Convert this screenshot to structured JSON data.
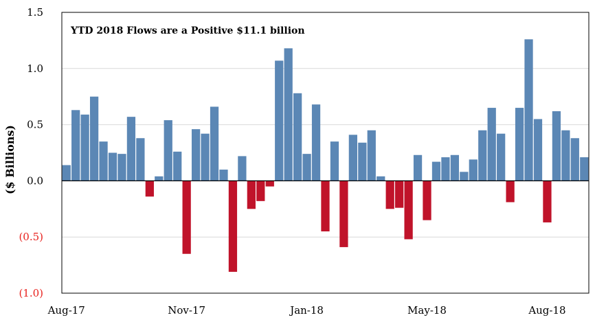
{
  "chart_data": {
    "type": "bar",
    "title": "",
    "annotation": "YTD 2018 Flows are a Positive $11.1 billion",
    "xlabel": "",
    "ylabel": "($ Billions)",
    "ylim": [
      -1.0,
      1.5
    ],
    "yticks": [
      {
        "value": 1.5,
        "label": "1.5"
      },
      {
        "value": 1.0,
        "label": "1.0"
      },
      {
        "value": 0.5,
        "label": "0.5"
      },
      {
        "value": 0.0,
        "label": "0.0"
      },
      {
        "value": -0.5,
        "label": "(0.5)"
      },
      {
        "value": -1.0,
        "label": "(1.0)"
      }
    ],
    "xticks": [
      {
        "index": 0,
        "label": "Aug-17"
      },
      {
        "index": 13,
        "label": "Nov-17"
      },
      {
        "index": 26,
        "label": "Jan-18"
      },
      {
        "index": 39,
        "label": "May-18"
      },
      {
        "index": 52,
        "label": "Aug-18"
      }
    ],
    "grid": true,
    "colors": {
      "positive": "#5b87b5",
      "negative": "#c0132a",
      "grid": "#d9d9d9",
      "negative_tick_label": "#e8201c"
    },
    "values": [
      0.14,
      0.63,
      0.59,
      0.75,
      0.35,
      0.25,
      0.24,
      0.57,
      0.38,
      -0.14,
      0.04,
      0.54,
      0.26,
      -0.65,
      0.46,
      0.42,
      0.66,
      0.1,
      -0.81,
      0.22,
      -0.25,
      -0.18,
      -0.05,
      1.07,
      1.18,
      0.78,
      0.24,
      0.68,
      -0.45,
      0.35,
      -0.59,
      0.41,
      0.34,
      0.45,
      0.04,
      -0.25,
      -0.24,
      -0.52,
      0.23,
      -0.35,
      0.17,
      0.21,
      0.23,
      0.08,
      0.19,
      0.45,
      0.65,
      0.42,
      -0.19,
      0.65,
      1.26,
      0.55,
      -0.37,
      0.62,
      0.45,
      0.38,
      0.21
    ]
  }
}
